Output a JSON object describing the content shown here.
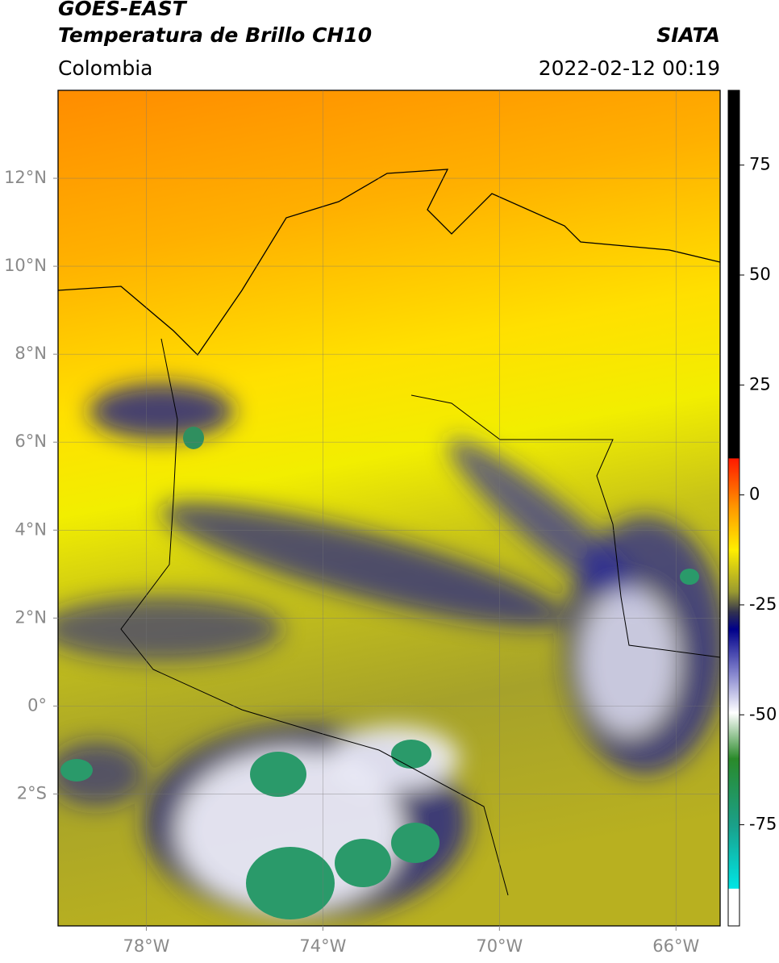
{
  "header": {
    "title": "GOES-EAST",
    "subtitle": "Temperatura de Brillo CH10",
    "source": "SIATA",
    "region": "Colombia",
    "timestamp": "2022-02-12 00:19"
  },
  "map": {
    "xlim": [
      -80,
      -65
    ],
    "ylim": [
      -5,
      14
    ],
    "xticks": [
      {
        "value": -78,
        "label": "78°W"
      },
      {
        "value": -74,
        "label": "74°W"
      },
      {
        "value": -70,
        "label": "70°W"
      },
      {
        "value": -66,
        "label": "66°W"
      }
    ],
    "yticks": [
      {
        "value": 12,
        "label": "12°N"
      },
      {
        "value": 10,
        "label": "10°N"
      },
      {
        "value": 8,
        "label": "8°N"
      },
      {
        "value": 6,
        "label": "6°N"
      },
      {
        "value": 4,
        "label": "4°N"
      },
      {
        "value": 2,
        "label": "2°N"
      },
      {
        "value": 0,
        "label": "0°"
      },
      {
        "value": -2,
        "label": "2°S"
      }
    ],
    "grid": true
  },
  "colorbar": {
    "lim": [
      -98,
      92
    ],
    "ticks": [
      75,
      50,
      25,
      0,
      -25,
      -50,
      -75
    ]
  }
}
